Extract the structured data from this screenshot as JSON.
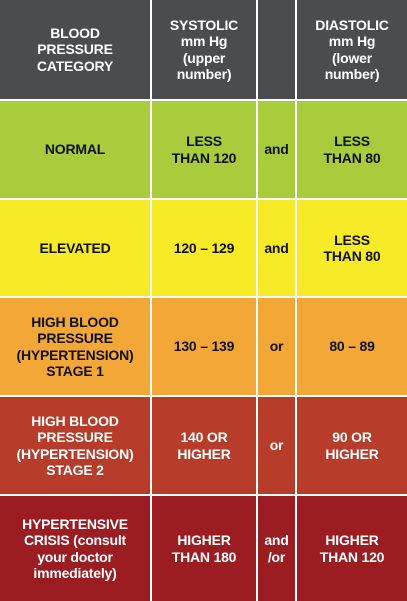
{
  "header": {
    "category": "BLOOD\nPRESSURE\nCATEGORY",
    "systolic": "SYSTOLIC\nmm Hg\n(upper\nnumber)",
    "connector": "",
    "diastolic": "DIASTOLIC\nmm Hg\n(lower\nnumber)"
  },
  "rows": [
    {
      "category": "NORMAL",
      "systolic": "LESS\nTHAN 120",
      "connector": "and",
      "diastolic": "LESS\nTHAN 80"
    },
    {
      "category": "ELEVATED",
      "systolic": "120 – 129",
      "connector": "and",
      "diastolic": "LESS\nTHAN 80"
    },
    {
      "category": "HIGH BLOOD\nPRESSURE\n(HYPERTENSION)\nSTAGE 1",
      "systolic": "130 – 139",
      "connector": "or",
      "diastolic": "80 – 89"
    },
    {
      "category": "HIGH BLOOD\nPRESSURE\n(HYPERTENSION)\nSTAGE 2",
      "systolic": "140 OR\nHIGHER",
      "connector": "or",
      "diastolic": "90 OR\nHIGHER"
    },
    {
      "category": "HYPERTENSIVE\nCRISIS (consult\nyour doctor\nimmediately)",
      "systolic": "HIGHER\nTHAN 180",
      "connector": "and\n/or",
      "diastolic": "HIGHER\nTHAN 120"
    }
  ],
  "colors": {
    "header_bg": "#4a4c4e",
    "header_text": "#ffffff",
    "normal_bg": "#a8cc3c",
    "elevated_bg": "#f7ea27",
    "stage1_bg": "#f2a736",
    "stage2_bg": "#b83c2a",
    "crisis_bg": "#9b1d21",
    "dark_text": "#111111",
    "light_text": "#ffffff"
  }
}
